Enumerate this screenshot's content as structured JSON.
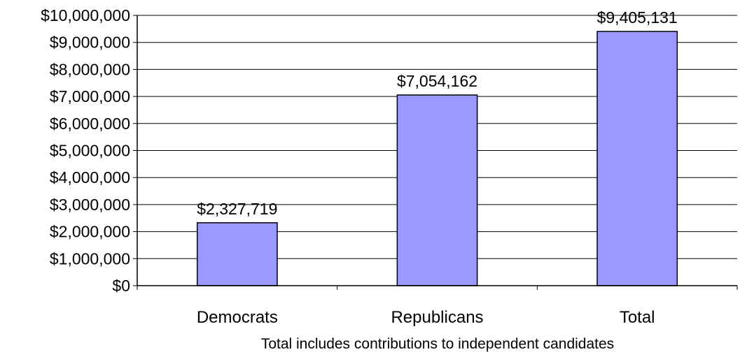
{
  "chart_data": {
    "type": "bar",
    "categories": [
      "Democrats",
      "Republicans",
      "Total"
    ],
    "values": [
      2327719,
      7054162,
      9405131
    ],
    "data_labels": [
      "$2,327,719",
      "$7,054,162",
      "$9,405,131"
    ],
    "title": "",
    "xlabel": "Total includes contributions to independent candidates",
    "ylabel": "",
    "ylim": [
      0,
      10000000
    ],
    "y_ticks": [
      0,
      1000000,
      2000000,
      3000000,
      4000000,
      5000000,
      6000000,
      7000000,
      8000000,
      9000000,
      10000000
    ],
    "y_tick_labels": [
      "$0",
      "$1,000,000",
      "$2,000,000",
      "$3,000,000",
      "$4,000,000",
      "$5,000,000",
      "$6,000,000",
      "$7,000,000",
      "$8,000,000",
      "$9,000,000",
      "$10,000,000"
    ],
    "grid": true,
    "legend": "none",
    "colors": {
      "bar_fill": "#9999ff",
      "bar_stroke": "#000000",
      "grid": "#000000",
      "axis": "#000000"
    }
  }
}
